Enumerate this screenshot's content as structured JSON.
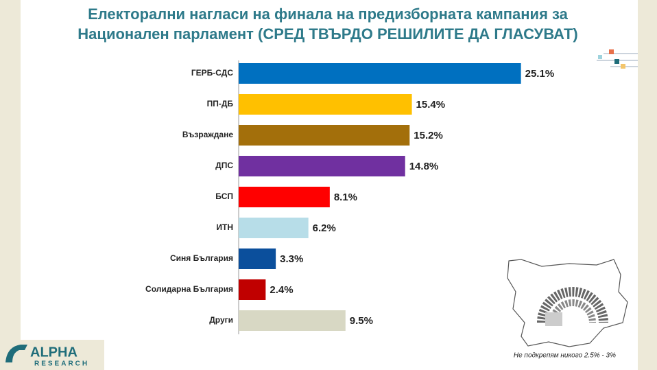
{
  "chart_data": {
    "type": "bar",
    "orientation": "horizontal",
    "title": [
      "Електорални нагласи на финала на предизборната кампания за",
      "Национален парламент (СРЕД ТВЪРДО РЕШИЛИТЕ ДА ГЛАСУВАТ)"
    ],
    "categories": [
      "ГЕРБ-СДС",
      "ПП-ДБ",
      "Възраждане",
      "ДПС",
      "БСП",
      "ИТН",
      "Синя България",
      "Солидарна България",
      "Други"
    ],
    "values": [
      25.1,
      15.4,
      15.2,
      14.8,
      8.1,
      6.2,
      3.3,
      2.4,
      9.5
    ],
    "value_labels": [
      "25.1%",
      "15.4%",
      "15.2%",
      "14.8%",
      "8.1%",
      "6.2%",
      "3.3%",
      "2.4%",
      "9.5%"
    ],
    "colors": [
      "#0070c0",
      "#ffc000",
      "#a36f0b",
      "#7030a0",
      "#ff0000",
      "#b7dde8",
      "#0b4f9c",
      "#c00000",
      "#d8d8c4"
    ],
    "xlim": [
      0,
      30
    ],
    "note": "Не подкрепям никого 2.5% - 3%"
  },
  "logo": {
    "name": "ALPHA",
    "sub": "RESEARCH"
  }
}
